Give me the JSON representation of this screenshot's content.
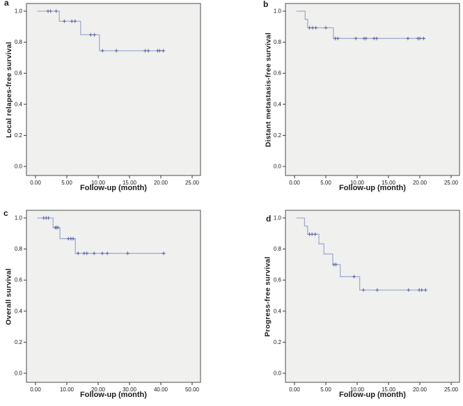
{
  "figure": {
    "background": "#ffffff",
    "colors": {
      "plot_bg": "#f0f0ee",
      "frame": "#4d4d4d",
      "curve": "#a3abd0",
      "censor": "#5c68a8",
      "tick": "#333333",
      "text": "#1a1a1a"
    }
  },
  "chart_data": [
    {
      "panel": "a",
      "letter": "a",
      "type": "line",
      "subtype": "kaplan-meier-step",
      "ylabel": "Local relapes-free survival",
      "xlabel": "Follow-up (month)",
      "xlim": [
        0,
        25
      ],
      "ylim": [
        0,
        1.0
      ],
      "grid": false,
      "legend": "none",
      "xtick_values": [
        0,
        5,
        10,
        15,
        20,
        25
      ],
      "xtick_labels": [
        "0.00",
        "5.00",
        "10.00",
        "15.00",
        "20.00",
        "25.00"
      ],
      "ytick_values": [
        0.0,
        0.2,
        0.4,
        0.6,
        0.8,
        1.0
      ],
      "ytick_labels": [
        "0.0",
        "0.2",
        "0.4",
        "0.6",
        "0.8",
        "1.0"
      ],
      "segments": [
        [
          0.3,
          3.8,
          1.0
        ],
        [
          3.8,
          7.2,
          0.935
        ],
        [
          7.2,
          10.2,
          0.848
        ],
        [
          10.2,
          20.6,
          0.745
        ]
      ],
      "censors": [
        [
          2.0,
          1.0
        ],
        [
          2.4,
          1.0
        ],
        [
          3.3,
          1.0
        ],
        [
          4.6,
          0.935
        ],
        [
          5.8,
          0.935
        ],
        [
          6.3,
          0.935
        ],
        [
          8.8,
          0.848
        ],
        [
          9.4,
          0.848
        ],
        [
          10.7,
          0.745
        ],
        [
          12.9,
          0.745
        ],
        [
          17.5,
          0.745
        ],
        [
          18.0,
          0.745
        ],
        [
          19.5,
          0.745
        ],
        [
          19.8,
          0.745
        ],
        [
          20.4,
          0.745
        ]
      ]
    },
    {
      "panel": "b",
      "letter": "b",
      "type": "line",
      "subtype": "kaplan-meier-step",
      "ylabel": "Distant metastasis-free survival",
      "xlabel": "Follow-up (month)",
      "xlim": [
        0,
        25
      ],
      "ylim": [
        0,
        1.0
      ],
      "grid": false,
      "legend": "none",
      "xtick_values": [
        0,
        5,
        10,
        15,
        20,
        25
      ],
      "xtick_labels": [
        "0.00",
        "5.00",
        "10.00",
        "15.00",
        "20.00",
        "25.00"
      ],
      "ytick_values": [
        0.0,
        0.2,
        0.4,
        0.6,
        0.8,
        1.0
      ],
      "ytick_labels": [
        "0.0",
        "0.2",
        "0.4",
        "0.6",
        "0.8",
        "1.0"
      ],
      "segments": [
        [
          0.3,
          1.7,
          1.0
        ],
        [
          1.7,
          2.1,
          0.947
        ],
        [
          2.1,
          6.2,
          0.893
        ],
        [
          6.2,
          20.9,
          0.824
        ]
      ],
      "censors": [
        [
          2.4,
          0.893
        ],
        [
          2.9,
          0.893
        ],
        [
          3.4,
          0.893
        ],
        [
          5.0,
          0.893
        ],
        [
          6.5,
          0.824
        ],
        [
          6.9,
          0.824
        ],
        [
          9.8,
          0.824
        ],
        [
          11.1,
          0.824
        ],
        [
          11.4,
          0.824
        ],
        [
          12.7,
          0.824
        ],
        [
          13.1,
          0.824
        ],
        [
          18.1,
          0.824
        ],
        [
          19.7,
          0.824
        ],
        [
          20.0,
          0.824
        ],
        [
          20.6,
          0.824
        ]
      ]
    },
    {
      "panel": "c",
      "letter": "c",
      "type": "line",
      "subtype": "kaplan-meier-step",
      "ylabel": "Overall survival",
      "xlabel": "Follow-up (month)",
      "xlim": [
        0,
        50
      ],
      "ylim": [
        0,
        1.0
      ],
      "grid": false,
      "legend": "none",
      "xtick_values": [
        0,
        10,
        20,
        30,
        40,
        50
      ],
      "xtick_labels": [
        "0.00",
        "10.00",
        "20.00",
        "30.00",
        "40.00",
        "50.00"
      ],
      "ytick_values": [
        0.0,
        0.2,
        0.4,
        0.6,
        0.8,
        1.0
      ],
      "ytick_labels": [
        "0.0",
        "0.2",
        "0.4",
        "0.6",
        "0.8",
        "1.0"
      ],
      "segments": [
        [
          0.5,
          5.6,
          1.0
        ],
        [
          5.6,
          7.8,
          0.938
        ],
        [
          7.8,
          12.7,
          0.867
        ],
        [
          12.7,
          41.3,
          0.772
        ]
      ],
      "censors": [
        [
          2.6,
          1.0
        ],
        [
          3.4,
          1.0
        ],
        [
          4.1,
          1.0
        ],
        [
          6.3,
          0.938
        ],
        [
          6.7,
          0.938
        ],
        [
          7.1,
          0.938
        ],
        [
          10.5,
          0.867
        ],
        [
          11.3,
          0.867
        ],
        [
          12.0,
          0.867
        ],
        [
          13.6,
          0.772
        ],
        [
          15.5,
          0.772
        ],
        [
          16.4,
          0.772
        ],
        [
          18.7,
          0.772
        ],
        [
          21.3,
          0.772
        ],
        [
          22.9,
          0.772
        ],
        [
          29.4,
          0.772
        ],
        [
          40.9,
          0.772
        ]
      ]
    },
    {
      "panel": "d",
      "letter": "d",
      "type": "line",
      "subtype": "kaplan-meier-step",
      "ylabel": "Progress-free survival",
      "xlabel": "Follow-up (month)",
      "xlim": [
        0,
        25
      ],
      "ylim": [
        0,
        1.0
      ],
      "grid": false,
      "legend": "none",
      "xtick_values": [
        0,
        5,
        10,
        15,
        20,
        25
      ],
      "xtick_labels": [
        "0.00",
        "5.00",
        "10.00",
        "15.00",
        "20.00",
        "25.00"
      ],
      "ytick_values": [
        0.0,
        0.2,
        0.4,
        0.6,
        0.8,
        1.0
      ],
      "ytick_labels": [
        "0.0",
        "0.2",
        "0.4",
        "0.6",
        "0.8",
        "1.0"
      ],
      "segments": [
        [
          0.3,
          1.6,
          1.0
        ],
        [
          1.6,
          2.1,
          0.948
        ],
        [
          2.1,
          3.9,
          0.895
        ],
        [
          3.9,
          4.7,
          0.833
        ],
        [
          4.7,
          6.1,
          0.768
        ],
        [
          6.1,
          7.3,
          0.7
        ],
        [
          7.3,
          10.4,
          0.622
        ],
        [
          10.4,
          21.2,
          0.536
        ]
      ],
      "censors": [
        [
          2.4,
          0.895
        ],
        [
          2.8,
          0.895
        ],
        [
          3.3,
          0.895
        ],
        [
          6.3,
          0.7
        ],
        [
          6.6,
          0.7
        ],
        [
          9.5,
          0.622
        ],
        [
          11.0,
          0.536
        ],
        [
          13.2,
          0.536
        ],
        [
          18.2,
          0.536
        ],
        [
          19.9,
          0.536
        ],
        [
          20.3,
          0.536
        ],
        [
          20.9,
          0.536
        ]
      ]
    }
  ]
}
